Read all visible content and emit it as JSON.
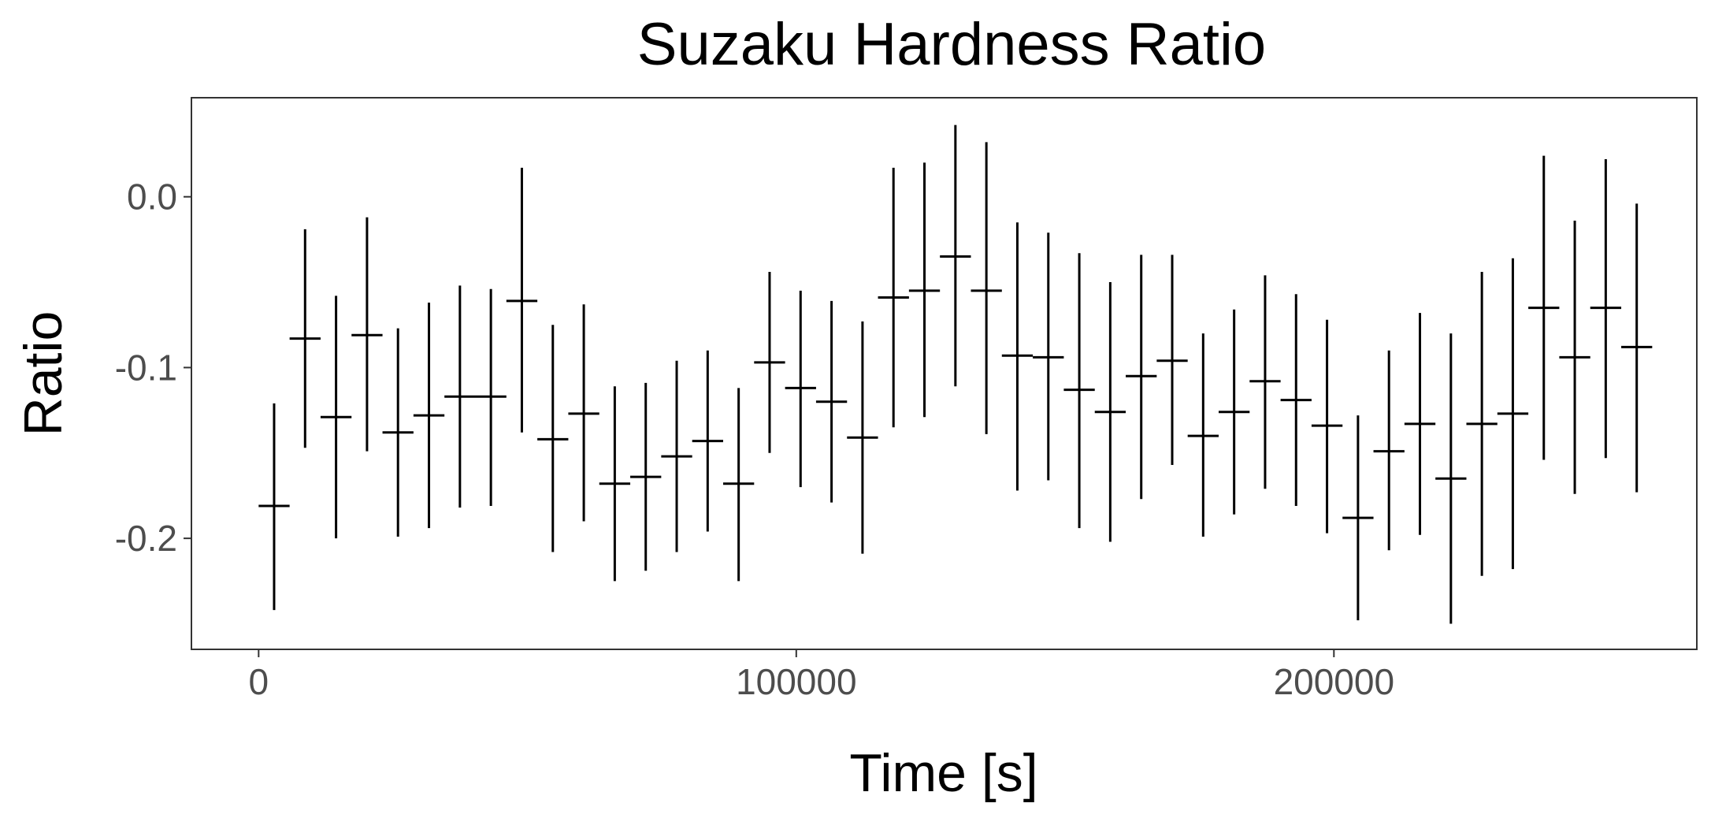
{
  "chart_data": {
    "type": "scatter",
    "title": "Suzaku Hardness Ratio",
    "xlabel": "Time [s]",
    "ylabel": "Ratio",
    "xlim": [
      -12500,
      267500
    ],
    "ylim": [
      -0.265,
      0.058
    ],
    "x_ticks": [
      0,
      100000,
      200000
    ],
    "x_tick_labels": [
      "0",
      "100000",
      "200000"
    ],
    "y_ticks": [
      -0.2,
      -0.1,
      0.0
    ],
    "y_tick_labels": [
      "-0.2",
      "-0.1",
      "0.0"
    ],
    "grid": false,
    "legend": "none",
    "marker": "horizontal-bar",
    "bin_width_s": 5760,
    "points": [
      {
        "x": 2880,
        "y": -0.181,
        "ylow": -0.242,
        "yhigh": -0.121
      },
      {
        "x": 8640,
        "y": -0.083,
        "ylow": -0.147,
        "yhigh": -0.019
      },
      {
        "x": 14400,
        "y": -0.129,
        "ylow": -0.2,
        "yhigh": -0.058
      },
      {
        "x": 20160,
        "y": -0.081,
        "ylow": -0.149,
        "yhigh": -0.012
      },
      {
        "x": 25920,
        "y": -0.138,
        "ylow": -0.199,
        "yhigh": -0.077
      },
      {
        "x": 31680,
        "y": -0.128,
        "ylow": -0.194,
        "yhigh": -0.062
      },
      {
        "x": 37440,
        "y": -0.117,
        "ylow": -0.182,
        "yhigh": -0.052
      },
      {
        "x": 43200,
        "y": -0.117,
        "ylow": -0.181,
        "yhigh": -0.054
      },
      {
        "x": 48960,
        "y": -0.061,
        "ylow": -0.138,
        "yhigh": 0.017
      },
      {
        "x": 54720,
        "y": -0.142,
        "ylow": -0.208,
        "yhigh": -0.075
      },
      {
        "x": 60480,
        "y": -0.127,
        "ylow": -0.19,
        "yhigh": -0.063
      },
      {
        "x": 66240,
        "y": -0.168,
        "ylow": -0.225,
        "yhigh": -0.111
      },
      {
        "x": 72000,
        "y": -0.164,
        "ylow": -0.219,
        "yhigh": -0.109
      },
      {
        "x": 77760,
        "y": -0.152,
        "ylow": -0.208,
        "yhigh": -0.096
      },
      {
        "x": 83520,
        "y": -0.143,
        "ylow": -0.196,
        "yhigh": -0.09
      },
      {
        "x": 89280,
        "y": -0.168,
        "ylow": -0.225,
        "yhigh": -0.112
      },
      {
        "x": 95040,
        "y": -0.097,
        "ylow": -0.15,
        "yhigh": -0.044
      },
      {
        "x": 100800,
        "y": -0.112,
        "ylow": -0.17,
        "yhigh": -0.055
      },
      {
        "x": 106560,
        "y": -0.12,
        "ylow": -0.179,
        "yhigh": -0.061
      },
      {
        "x": 112320,
        "y": -0.141,
        "ylow": -0.209,
        "yhigh": -0.073
      },
      {
        "x": 118080,
        "y": -0.059,
        "ylow": -0.135,
        "yhigh": 0.017
      },
      {
        "x": 123840,
        "y": -0.055,
        "ylow": -0.129,
        "yhigh": 0.02
      },
      {
        "x": 129600,
        "y": -0.035,
        "ylow": -0.111,
        "yhigh": 0.042
      },
      {
        "x": 135360,
        "y": -0.055,
        "ylow": -0.139,
        "yhigh": 0.032
      },
      {
        "x": 141120,
        "y": -0.093,
        "ylow": -0.172,
        "yhigh": -0.015
      },
      {
        "x": 146880,
        "y": -0.094,
        "ylow": -0.166,
        "yhigh": -0.021
      },
      {
        "x": 152640,
        "y": -0.113,
        "ylow": -0.194,
        "yhigh": -0.033
      },
      {
        "x": 158400,
        "y": -0.126,
        "ylow": -0.202,
        "yhigh": -0.05
      },
      {
        "x": 164160,
        "y": -0.105,
        "ylow": -0.177,
        "yhigh": -0.034
      },
      {
        "x": 169920,
        "y": -0.096,
        "ylow": -0.157,
        "yhigh": -0.034
      },
      {
        "x": 175680,
        "y": -0.14,
        "ylow": -0.199,
        "yhigh": -0.08
      },
      {
        "x": 181440,
        "y": -0.126,
        "ylow": -0.186,
        "yhigh": -0.066
      },
      {
        "x": 187200,
        "y": -0.108,
        "ylow": -0.171,
        "yhigh": -0.046
      },
      {
        "x": 192960,
        "y": -0.119,
        "ylow": -0.181,
        "yhigh": -0.057
      },
      {
        "x": 198720,
        "y": -0.134,
        "ylow": -0.197,
        "yhigh": -0.072
      },
      {
        "x": 204480,
        "y": -0.188,
        "ylow": -0.248,
        "yhigh": -0.128
      },
      {
        "x": 210240,
        "y": -0.149,
        "ylow": -0.207,
        "yhigh": -0.09
      },
      {
        "x": 216000,
        "y": -0.133,
        "ylow": -0.198,
        "yhigh": -0.068
      },
      {
        "x": 221760,
        "y": -0.165,
        "ylow": -0.25,
        "yhigh": -0.08
      },
      {
        "x": 227520,
        "y": -0.133,
        "ylow": -0.222,
        "yhigh": -0.044
      },
      {
        "x": 233280,
        "y": -0.127,
        "ylow": -0.218,
        "yhigh": -0.036
      },
      {
        "x": 239040,
        "y": -0.065,
        "ylow": -0.154,
        "yhigh": 0.024
      },
      {
        "x": 244800,
        "y": -0.094,
        "ylow": -0.174,
        "yhigh": -0.014
      },
      {
        "x": 250560,
        "y": -0.065,
        "ylow": -0.153,
        "yhigh": 0.022
      },
      {
        "x": 256320,
        "y": -0.088,
        "ylow": -0.173,
        "yhigh": -0.004
      }
    ]
  }
}
